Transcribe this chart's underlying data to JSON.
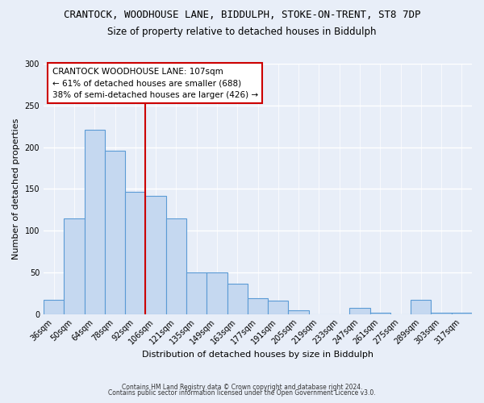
{
  "title": "CRANTOCK, WOODHOUSE LANE, BIDDULPH, STOKE-ON-TRENT, ST8 7DP",
  "subtitle": "Size of property relative to detached houses in Biddulph",
  "xlabel": "Distribution of detached houses by size in Biddulph",
  "ylabel": "Number of detached properties",
  "categories": [
    "36sqm",
    "50sqm",
    "64sqm",
    "78sqm",
    "92sqm",
    "106sqm",
    "121sqm",
    "135sqm",
    "149sqm",
    "163sqm",
    "177sqm",
    "191sqm",
    "205sqm",
    "219sqm",
    "233sqm",
    "247sqm",
    "261sqm",
    "275sqm",
    "289sqm",
    "303sqm",
    "317sqm"
  ],
  "values": [
    17,
    115,
    221,
    196,
    146,
    142,
    115,
    50,
    50,
    36,
    19,
    16,
    4,
    0,
    0,
    7,
    2,
    0,
    17,
    2,
    2
  ],
  "bar_color": "#c5d8f0",
  "bar_edge_color": "#5b9bd5",
  "marker_label_line1": "CRANTOCK WOODHOUSE LANE: 107sqm",
  "marker_label_line2": "← 61% of detached houses are smaller (688)",
  "marker_label_line3": "38% of semi-detached houses are larger (426) →",
  "marker_color": "#cc0000",
  "marker_bar_index": 4.5,
  "ylim": [
    0,
    300
  ],
  "yticks": [
    0,
    50,
    100,
    150,
    200,
    250,
    300
  ],
  "footnote1": "Contains HM Land Registry data © Crown copyright and database right 2024.",
  "footnote2": "Contains public sector information licensed under the Open Government Licence v3.0.",
  "bg_color": "#e8eef8",
  "plot_bg_color": "#e8eef8",
  "title_fontsize": 9,
  "subtitle_fontsize": 8.5,
  "annotation_fontsize": 7.5,
  "axis_label_fontsize": 8,
  "tick_fontsize": 7,
  "footnote_fontsize": 5.5
}
